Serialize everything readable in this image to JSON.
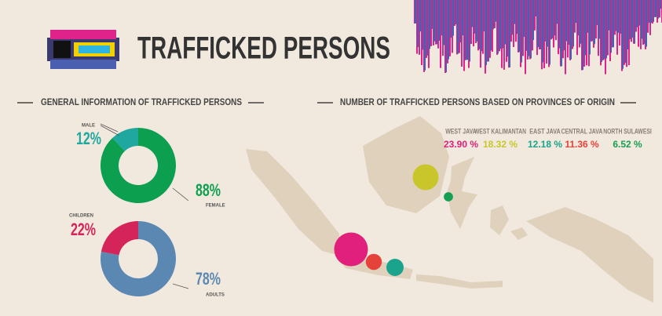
{
  "title": "TRAFFICKED PERSONS",
  "chart_data": [
    {
      "type": "pie",
      "donut": true,
      "title": "GENERAL INFORMATION OF TRAFFICKED PERSONS",
      "categories": [
        "MALE",
        "FEMALE"
      ],
      "values": [
        12,
        88
      ],
      "value_labels": [
        "12%",
        "88%"
      ],
      "colors": [
        "#1fa89f",
        "#0c9f50"
      ]
    },
    {
      "type": "pie",
      "donut": true,
      "categories": [
        "CHILDREN",
        "ADULTS"
      ],
      "values": [
        22,
        78
      ],
      "value_labels": [
        "22%",
        "78%"
      ],
      "colors": [
        "#d42459",
        "#5b88b2"
      ]
    },
    {
      "type": "bubble",
      "title": "NUMBER OF TRAFFICKED PERSONS BASED ON PROVINCES OF ORIGIN",
      "categories": [
        "WEST JAVA",
        "WEST KALIMANTAN",
        "EAST JAVA",
        "CENTRAL JAVA",
        "NORTH SULAWESI"
      ],
      "values": [
        23.9,
        18.32,
        12.18,
        11.36,
        6.52
      ],
      "value_labels": [
        "23.90 %",
        "18.32 %",
        "12.18 %",
        "11.36 %",
        "6.52 %"
      ],
      "colors": [
        "#e0207a",
        "#c9c62c",
        "#1aa38d",
        "#e5433a",
        "#14a050"
      ]
    }
  ]
}
